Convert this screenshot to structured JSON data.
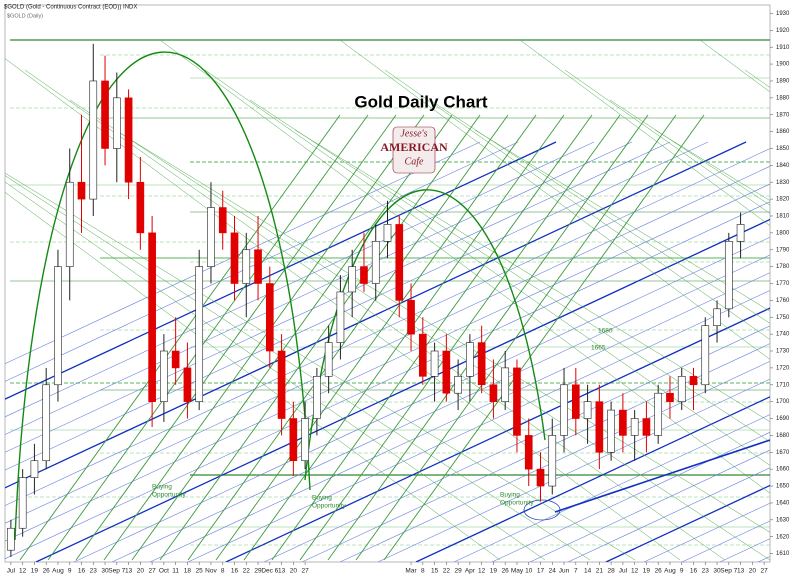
{
  "chart_data": {
    "type": "candlestick",
    "header": "$GOLD (Gold - Continuous Contract (EOD)) INDX",
    "subheader": "$GOLD (Daily)",
    "title": "Gold Daily Chart",
    "logo": [
      "Jesse's",
      "AMERICAN",
      "Cafe"
    ],
    "categories": [
      "Jul",
      "12",
      "19",
      "26",
      "Aug",
      "9",
      "16",
      "23",
      "30",
      "Sep 7",
      "13",
      "20",
      "27",
      "Oct",
      "11",
      "18",
      "25",
      "Nov",
      "8",
      "16",
      "22",
      "29",
      "Dec 6",
      "13",
      "20",
      "27",
      null,
      null,
      null,
      null,
      null,
      null,
      null,
      null,
      "Mar",
      "8",
      "15",
      "22",
      "29",
      "Apr",
      "12",
      "19",
      "26",
      "May",
      "10",
      "17",
      "24",
      "Jun",
      "7",
      "14",
      "21",
      "28",
      "Jul",
      "12",
      "19",
      "26",
      "Aug",
      "9",
      "16",
      "23",
      "30",
      "Sep 7",
      "13",
      "20",
      "27"
    ],
    "open": [
      1612,
      1625,
      1655,
      1665,
      1710,
      1780,
      1830,
      1820,
      1890,
      1850,
      1880,
      1830,
      1800,
      1700,
      1730,
      1720,
      1700,
      1780,
      1815,
      1800,
      1770,
      1790,
      1770,
      1730,
      1690,
      1665,
      1690,
      1715,
      1735,
      1765,
      1780,
      1770,
      1795,
      1805,
      1760,
      1740,
      1715,
      1730,
      1705,
      1715,
      1735,
      1710,
      1700,
      1720,
      1680,
      1660,
      1650,
      1680,
      1710,
      1690,
      1700,
      1670,
      1695,
      1680,
      1690,
      1680,
      1705,
      1700,
      1715,
      1710,
      1745,
      1755,
      1795,
      null,
      null
    ],
    "high": [
      1630,
      1660,
      1675,
      1720,
      1790,
      1850,
      1870,
      1912,
      1905,
      1895,
      1885,
      1845,
      1810,
      1740,
      1750,
      1735,
      1790,
      1830,
      1825,
      1810,
      1800,
      1810,
      1780,
      1740,
      1700,
      1700,
      1720,
      1745,
      1775,
      1790,
      1800,
      1805,
      1819,
      1810,
      1770,
      1750,
      1735,
      1740,
      1725,
      1740,
      1745,
      1725,
      1730,
      1725,
      1690,
      1670,
      1690,
      1720,
      1720,
      1710,
      1710,
      1700,
      1705,
      1695,
      1700,
      1710,
      1715,
      1720,
      1720,
      1750,
      1760,
      1800,
      1812,
      null,
      null
    ],
    "low": [
      1608,
      1620,
      1645,
      1660,
      1700,
      1760,
      1800,
      1810,
      1840,
      1830,
      1820,
      1790,
      1685,
      1688,
      1710,
      1690,
      1695,
      1770,
      1790,
      1760,
      1750,
      1760,
      1720,
      1680,
      1656,
      1660,
      1680,
      1705,
      1725,
      1750,
      1765,
      1760,
      1785,
      1750,
      1730,
      1710,
      1700,
      1700,
      1695,
      1700,
      1705,
      1690,
      1695,
      1670,
      1650,
      1641,
      1645,
      1670,
      1680,
      1675,
      1660,
      1665,
      1670,
      1665,
      1670,
      1675,
      1690,
      1695,
      1695,
      1705,
      1735,
      1750,
      1785,
      null,
      null
    ],
    "close": [
      1625,
      1655,
      1665,
      1710,
      1780,
      1830,
      1820,
      1890,
      1850,
      1880,
      1830,
      1800,
      1700,
      1730,
      1720,
      1700,
      1780,
      1815,
      1800,
      1770,
      1790,
      1770,
      1730,
      1690,
      1665,
      1690,
      1715,
      1735,
      1765,
      1780,
      1770,
      1795,
      1805,
      1760,
      1740,
      1715,
      1730,
      1705,
      1715,
      1735,
      1710,
      1700,
      1720,
      1680,
      1660,
      1650,
      1680,
      1710,
      1690,
      1700,
      1670,
      1695,
      1680,
      1690,
      1680,
      1705,
      1700,
      1715,
      1710,
      1745,
      1755,
      1795,
      1805,
      null,
      null
    ],
    "up_color": "#ffffff",
    "down_color": "#e00000",
    "ylim": [
      1605,
      1935
    ],
    "yticks": [
      1610,
      1620,
      1630,
      1640,
      1650,
      1660,
      1670,
      1680,
      1690,
      1700,
      1710,
      1720,
      1730,
      1740,
      1750,
      1760,
      1770,
      1780,
      1790,
      1800,
      1810,
      1820,
      1830,
      1840,
      1850,
      1860,
      1870,
      1880,
      1890,
      1900,
      1910,
      1920,
      1930
    ],
    "annotations": [
      [
        "Buying",
        "Opportunity"
      ],
      [
        "Buying",
        "Opportunity"
      ],
      [
        "Buying",
        "Opportunity"
      ]
    ],
    "levels": [
      "1680",
      "1665"
    ]
  }
}
